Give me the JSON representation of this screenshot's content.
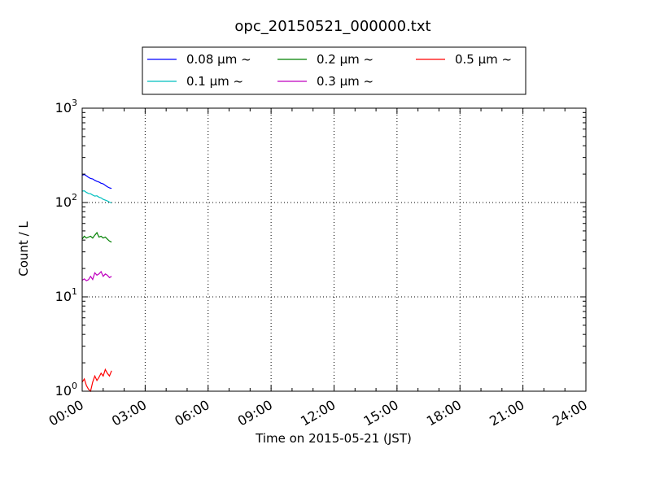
{
  "chart_data": {
    "type": "line",
    "title": "opc_20150521_000000.txt",
    "xlabel": "Time on 2015-05-21 (JST)",
    "ylabel": "Count / L",
    "x_unit": "hours",
    "xlim": [
      0,
      24
    ],
    "ylim": [
      1,
      1000
    ],
    "yscale": "log",
    "grid": true,
    "legend_position": "top-center",
    "x_ticks": [
      {
        "value": 0,
        "label": "00:00"
      },
      {
        "value": 3,
        "label": "03:00"
      },
      {
        "value": 6,
        "label": "06:00"
      },
      {
        "value": 9,
        "label": "09:00"
      },
      {
        "value": 12,
        "label": "12:00"
      },
      {
        "value": 15,
        "label": "15:00"
      },
      {
        "value": 18,
        "label": "18:00"
      },
      {
        "value": 21,
        "label": "21:00"
      },
      {
        "value": 24,
        "label": "24:00"
      }
    ],
    "y_ticks": [
      {
        "value": 1,
        "base": "10",
        "exp": "0"
      },
      {
        "value": 10,
        "base": "10",
        "exp": "1"
      },
      {
        "value": 100,
        "base": "10",
        "exp": "2"
      },
      {
        "value": 1000,
        "base": "10",
        "exp": "3"
      }
    ],
    "series": [
      {
        "name": "0.08 μm ~",
        "color": "#0000ff",
        "x": [
          0.0,
          0.1,
          0.2,
          0.3,
          0.4,
          0.5,
          0.6,
          0.7,
          0.8,
          0.9,
          1.0,
          1.1,
          1.2,
          1.3,
          1.4
        ],
        "y": [
          195,
          198,
          192,
          185,
          180,
          178,
          172,
          168,
          165,
          160,
          158,
          152,
          147,
          143,
          141
        ]
      },
      {
        "name": "0.1 μm ~",
        "color": "#00bfbf",
        "x": [
          0.0,
          0.1,
          0.2,
          0.3,
          0.4,
          0.5,
          0.6,
          0.7,
          0.8,
          0.9,
          1.0,
          1.1,
          1.2,
          1.3,
          1.4
        ],
        "y": [
          132,
          133,
          128,
          125,
          124,
          120,
          117,
          118,
          114,
          112,
          108,
          106,
          104,
          101,
          99
        ]
      },
      {
        "name": "0.2 μm ~",
        "color": "#008000",
        "x": [
          0.0,
          0.1,
          0.2,
          0.3,
          0.4,
          0.5,
          0.6,
          0.7,
          0.8,
          0.9,
          1.0,
          1.1,
          1.2,
          1.3,
          1.4
        ],
        "y": [
          41,
          44,
          42,
          43,
          44,
          42,
          45,
          48,
          43,
          44,
          42,
          43,
          41,
          39,
          38
        ]
      },
      {
        "name": "0.3 μm ~",
        "color": "#bf00bf",
        "x": [
          0.0,
          0.1,
          0.2,
          0.3,
          0.4,
          0.5,
          0.6,
          0.7,
          0.8,
          0.9,
          1.0,
          1.1,
          1.2,
          1.3,
          1.4
        ],
        "y": [
          15.0,
          15.5,
          14.8,
          15.2,
          16.5,
          15.3,
          18.0,
          17.0,
          17.5,
          18.5,
          16.5,
          17.5,
          17.0,
          16.0,
          16.5
        ]
      },
      {
        "name": "0.5 μm ~",
        "color": "#ff0000",
        "x": [
          0.0,
          0.1,
          0.2,
          0.3,
          0.4,
          0.5,
          0.6,
          0.7,
          0.8,
          0.9,
          1.0,
          1.1,
          1.2,
          1.3,
          1.4
        ],
        "y": [
          1.25,
          1.35,
          1.15,
          1.05,
          1.0,
          1.25,
          1.45,
          1.3,
          1.4,
          1.55,
          1.45,
          1.7,
          1.55,
          1.45,
          1.65
        ]
      }
    ]
  }
}
